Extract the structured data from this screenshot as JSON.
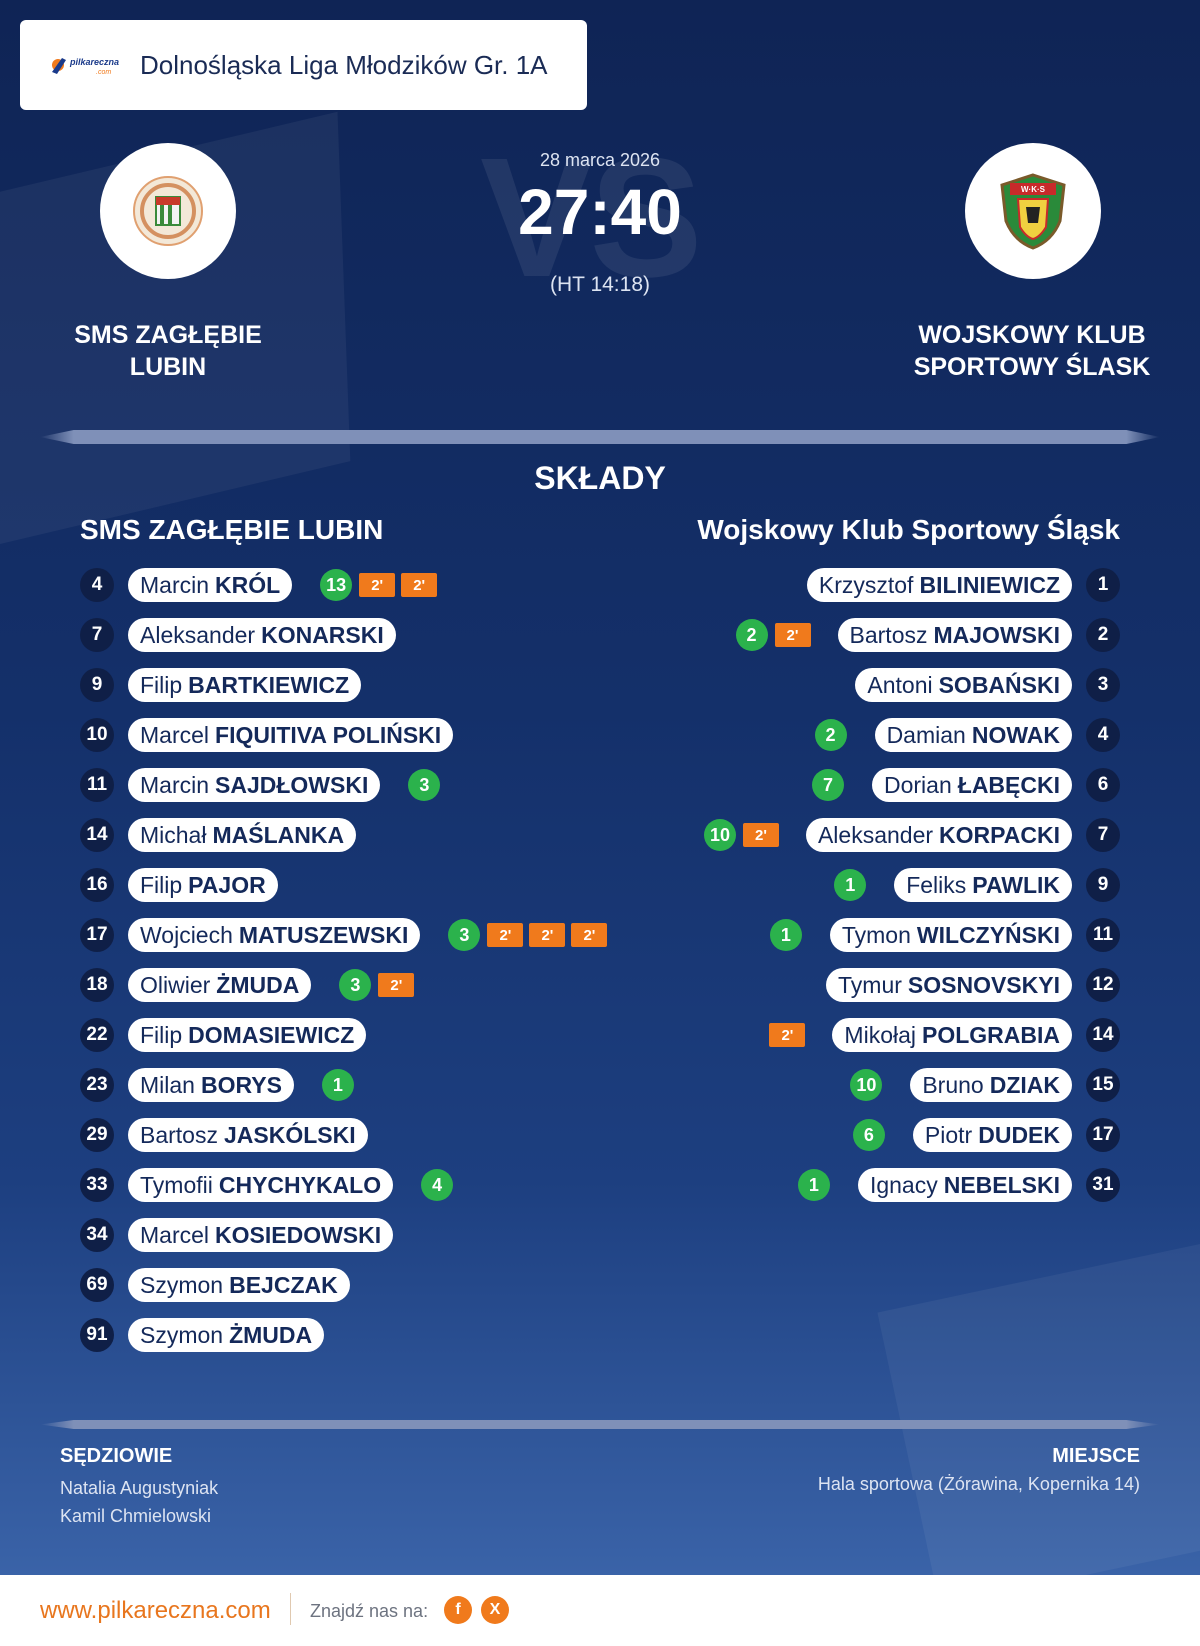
{
  "league": {
    "logo_text": "pilkareczna.com",
    "name": "Dolnośląska Liga Młodzików Gr. 1A"
  },
  "match": {
    "date": "28 marca 2026",
    "score": "27:40",
    "halftime": "(HT 14:18)",
    "vs_watermark": "VS"
  },
  "home": {
    "name_line1": "SMS ZAGŁĘBIE",
    "name_line2": "LUBIN",
    "lineup_title": "SMS ZAGŁĘBIE LUBIN",
    "logo_icon": "zaglebie-lubin-crest-icon",
    "players": [
      {
        "num": "4",
        "first": "Marcin",
        "last": "KRÓL",
        "goals": "13",
        "suspensions": 2
      },
      {
        "num": "7",
        "first": "Aleksander",
        "last": "KONARSKI",
        "goals": "",
        "suspensions": 0
      },
      {
        "num": "9",
        "first": "Filip",
        "last": "BARTKIEWICZ",
        "goals": "",
        "suspensions": 0
      },
      {
        "num": "10",
        "first": "Marcel",
        "last": "FIQUITIVA POLIŃSKI",
        "goals": "",
        "suspensions": 0
      },
      {
        "num": "11",
        "first": "Marcin",
        "last": "SAJDŁOWSKI",
        "goals": "3",
        "suspensions": 0
      },
      {
        "num": "14",
        "first": "Michał",
        "last": "MAŚLANKA",
        "goals": "",
        "suspensions": 0
      },
      {
        "num": "16",
        "first": "Filip",
        "last": "PAJOR",
        "goals": "",
        "suspensions": 0
      },
      {
        "num": "17",
        "first": "Wojciech",
        "last": "MATUSZEWSKI",
        "goals": "3",
        "suspensions": 3
      },
      {
        "num": "18",
        "first": "Oliwier",
        "last": "ŻMUDA",
        "goals": "3",
        "suspensions": 1
      },
      {
        "num": "22",
        "first": "Filip",
        "last": "DOMASIEWICZ",
        "goals": "",
        "suspensions": 0
      },
      {
        "num": "23",
        "first": "Milan",
        "last": "BORYS",
        "goals": "1",
        "suspensions": 0
      },
      {
        "num": "29",
        "first": "Bartosz",
        "last": "JASKÓLSKI",
        "goals": "",
        "suspensions": 0
      },
      {
        "num": "33",
        "first": "Tymofii",
        "last": "CHYCHYKALO",
        "goals": "4",
        "suspensions": 0
      },
      {
        "num": "34",
        "first": "Marcel",
        "last": "KOSIEDOWSKI",
        "goals": "",
        "suspensions": 0
      },
      {
        "num": "69",
        "first": "Szymon",
        "last": "BEJCZAK",
        "goals": "",
        "suspensions": 0
      },
      {
        "num": "91",
        "first": "Szymon",
        "last": "ŻMUDA",
        "goals": "",
        "suspensions": 0
      }
    ]
  },
  "away": {
    "name_line1": "WOJSKOWY KLUB",
    "name_line2": "SPORTOWY ŚLASK",
    "lineup_title": "Wojskowy Klub Sportowy Śląsk",
    "logo_icon": "slask-wroclaw-crest-icon",
    "logo_text": "W·K·S",
    "players": [
      {
        "num": "1",
        "first": "Krzysztof",
        "last": "BILINIEWICZ",
        "goals": "",
        "suspensions": 0
      },
      {
        "num": "2",
        "first": "Bartosz",
        "last": "MAJOWSKI",
        "goals": "2",
        "suspensions": 1
      },
      {
        "num": "3",
        "first": "Antoni",
        "last": "SOBAŃSKI",
        "goals": "",
        "suspensions": 0
      },
      {
        "num": "4",
        "first": "Damian",
        "last": "NOWAK",
        "goals": "2",
        "suspensions": 0
      },
      {
        "num": "6",
        "first": "Dorian",
        "last": "ŁABĘCKI",
        "goals": "7",
        "suspensions": 0
      },
      {
        "num": "7",
        "first": "Aleksander",
        "last": "KORPACKI",
        "goals": "10",
        "suspensions": 1
      },
      {
        "num": "9",
        "first": "Feliks",
        "last": "PAWLIK",
        "goals": "1",
        "suspensions": 0
      },
      {
        "num": "11",
        "first": "Tymon",
        "last": "WILCZYŃSKI",
        "goals": "1",
        "suspensions": 0
      },
      {
        "num": "12",
        "first": "Tymur",
        "last": "SOSNOVSKYI",
        "goals": "",
        "suspensions": 0
      },
      {
        "num": "14",
        "first": "Mikołaj",
        "last": "POLGRABIA",
        "goals": "",
        "suspensions": 1
      },
      {
        "num": "15",
        "first": "Bruno",
        "last": "DZIAK",
        "goals": "10",
        "suspensions": 0
      },
      {
        "num": "17",
        "first": "Piotr",
        "last": "DUDEK",
        "goals": "6",
        "suspensions": 0
      },
      {
        "num": "31",
        "first": "Ignacy",
        "last": "NEBELSKI",
        "goals": "1",
        "suspensions": 0
      }
    ]
  },
  "suspension_label": "2'",
  "lineups_title": "SKŁADY",
  "referees": {
    "title": "SĘDZIOWIE",
    "names": [
      "Natalia Augustyniak",
      "Kamil Chmielowski"
    ]
  },
  "venue": {
    "title": "MIEJSCE",
    "value": "Hala sportowa (Żórawina, Kopernika 14)"
  },
  "footer": {
    "url": "www.pilkareczna.com",
    "find_us": "Znajdź nas na:",
    "facebook_label": "f",
    "x_label": "X"
  },
  "colors": {
    "background_top": "#0f2455",
    "background_bottom": "#3a63a8",
    "goal_badge": "#2bb24c",
    "suspension_badge": "#f07a1c",
    "accent": "#e8761e"
  }
}
